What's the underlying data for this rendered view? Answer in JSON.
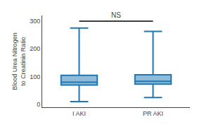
{
  "chart_data": {
    "type": "box",
    "ylabel": "Blood Urea Nitrogen\nto Creatinin Ratio",
    "categories": [
      "I AKI",
      "PR AKI"
    ],
    "boxes": [
      {
        "whisker_low": 10,
        "q1": 70,
        "median": 80,
        "q3": 105,
        "whisker_high": 275
      },
      {
        "whisker_low": 25,
        "q1": 73,
        "median": 83,
        "q3": 107,
        "whisker_high": 263
      }
    ],
    "ylim": [
      -10,
      320
    ],
    "yticks": [
      0,
      100,
      200,
      300
    ],
    "grid": false,
    "annotations": [
      {
        "text": "NS",
        "x_from": "I AKI",
        "x_to": "PR AKI",
        "y": 300
      }
    ]
  }
}
